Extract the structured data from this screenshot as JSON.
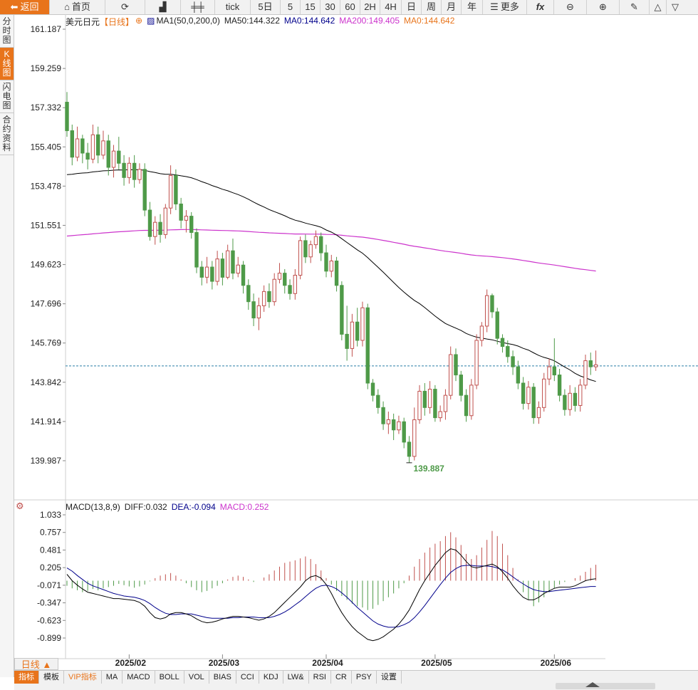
{
  "toolbar": {
    "back": "返回",
    "home": "首页",
    "tick": "tick",
    "periods": [
      "5日",
      "5",
      "15",
      "30",
      "60",
      "2H",
      "4H",
      "日",
      "周",
      "月",
      "年"
    ],
    "more": "更多"
  },
  "left_tabs": [
    {
      "label": "分时图",
      "active": false
    },
    {
      "label": "K线图",
      "active": true
    },
    {
      "label": "闪电图",
      "active": false
    },
    {
      "label": "合约资料",
      "active": false
    }
  ],
  "legend": {
    "symbol": "美元日元",
    "period": "【日线】",
    "ma1": "MA1(50,0,200,0)",
    "ma50": "MA50:144.322",
    "ma0a": "MA0:144.642",
    "ma200": "MA200:149.405",
    "ma0b": "MA0:144.642"
  },
  "macd_legend": {
    "name": "MACD(13,8,9)",
    "diff": "DIFF:0.032",
    "dea": "DEA:-0.094",
    "macd": "MACD:0.252"
  },
  "price_axis": [
    "161.187",
    "159.259",
    "157.332",
    "155.405",
    "153.478",
    "151.551",
    "149.623",
    "147.696",
    "145.769",
    "143.842",
    "141.914",
    "139.987"
  ],
  "macd_axis": [
    "1.033",
    "0.757",
    "0.481",
    "0.205",
    "-0.071",
    "-0.347",
    "-0.623",
    "-0.899"
  ],
  "low_label": "139.887",
  "x_labels": [
    "2025/02",
    "2025/03",
    "2025/04",
    "2025/05",
    "2025/06"
  ],
  "bottom": {
    "period_button": "日线 ▲",
    "indicator_tabs": [
      "指标",
      "模板",
      "VIP指标",
      "MA",
      "MACD",
      "BOLL",
      "VOL",
      "BIAS",
      "CCI",
      "KDJ",
      "LW&",
      "RSI",
      "CR",
      "PSY",
      "设置"
    ]
  },
  "colors": {
    "up": "#c0504d",
    "down": "#4e9a48",
    "ma50": "#000000",
    "ma200": "#cc33cc",
    "accent": "#e8741b",
    "dea": "#00008b"
  },
  "chart_data": {
    "type": "candlestick",
    "current_price": 144.642,
    "low": 139.887,
    "ylim": [
      139.987,
      161.187
    ],
    "macd_ylim": [
      -0.899,
      1.033
    ],
    "candles": [
      [
        157.6,
        156.2,
        158.1,
        155.9
      ],
      [
        156.2,
        154.9,
        156.5,
        154.5
      ],
      [
        154.9,
        155.8,
        156.4,
        154.7
      ],
      [
        155.8,
        155.1,
        156.0,
        154.6
      ],
      [
        155.1,
        154.8,
        155.6,
        154.3
      ],
      [
        154.8,
        156.0,
        156.5,
        154.6
      ],
      [
        156.0,
        155.0,
        156.4,
        154.6
      ],
      [
        155.0,
        155.7,
        156.2,
        154.8
      ],
      [
        155.7,
        154.4,
        156.0,
        154.0
      ],
      [
        154.4,
        155.2,
        155.5,
        153.9
      ],
      [
        155.2,
        154.6,
        155.9,
        154.3
      ],
      [
        154.6,
        153.9,
        155.0,
        153.5
      ],
      [
        153.9,
        154.6,
        154.9,
        153.6
      ],
      [
        154.6,
        153.8,
        155.0,
        153.4
      ],
      [
        153.8,
        154.3,
        154.6,
        153.6
      ],
      [
        154.3,
        152.3,
        154.6,
        152.0
      ],
      [
        152.3,
        151.0,
        152.7,
        150.8
      ],
      [
        151.0,
        151.7,
        152.0,
        150.6
      ],
      [
        151.7,
        151.1,
        152.1,
        150.7
      ],
      [
        151.1,
        152.4,
        152.6,
        150.9
      ],
      [
        152.4,
        154.0,
        154.5,
        152.1
      ],
      [
        154.0,
        152.6,
        154.3,
        152.3
      ],
      [
        152.6,
        151.8,
        152.9,
        151.4
      ],
      [
        151.8,
        152.0,
        152.3,
        151.2
      ],
      [
        152.0,
        151.2,
        152.2,
        150.9
      ],
      [
        151.2,
        149.5,
        151.4,
        149.2
      ],
      [
        149.5,
        149.0,
        149.8,
        148.6
      ],
      [
        149.0,
        149.5,
        150.0,
        148.7
      ],
      [
        149.5,
        148.8,
        149.8,
        148.4
      ],
      [
        148.8,
        149.9,
        150.3,
        148.6
      ],
      [
        149.9,
        149.0,
        150.2,
        148.6
      ],
      [
        149.0,
        150.3,
        150.6,
        148.9
      ],
      [
        150.3,
        149.2,
        150.9,
        148.9
      ],
      [
        149.2,
        149.6,
        150.0,
        149.0
      ],
      [
        149.6,
        148.6,
        149.8,
        148.2
      ],
      [
        148.6,
        147.8,
        148.9,
        147.4
      ],
      [
        147.8,
        147.0,
        148.2,
        146.6
      ],
      [
        147.0,
        147.6,
        148.0,
        146.4
      ],
      [
        147.6,
        148.3,
        148.6,
        147.3
      ],
      [
        148.3,
        147.8,
        148.7,
        147.5
      ],
      [
        147.8,
        148.9,
        149.2,
        147.6
      ],
      [
        148.9,
        149.2,
        149.7,
        148.7
      ],
      [
        149.2,
        148.6,
        149.4,
        148.2
      ],
      [
        148.6,
        148.2,
        148.9,
        147.9
      ],
      [
        148.2,
        149.1,
        149.4,
        147.9
      ],
      [
        149.1,
        150.8,
        151.0,
        148.9
      ],
      [
        150.8,
        150.0,
        151.1,
        149.7
      ],
      [
        150.0,
        150.6,
        150.8,
        149.7
      ],
      [
        150.6,
        151.0,
        151.3,
        150.4
      ],
      [
        151.0,
        150.2,
        151.2,
        149.8
      ],
      [
        150.2,
        149.3,
        150.6,
        149.0
      ],
      [
        149.3,
        149.8,
        150.1,
        149.0
      ],
      [
        149.8,
        148.6,
        150.0,
        148.3
      ],
      [
        148.6,
        146.2,
        148.8,
        145.9
      ],
      [
        146.2,
        145.5,
        147.6,
        144.9
      ],
      [
        145.5,
        146.8,
        147.2,
        145.1
      ],
      [
        146.8,
        145.9,
        147.5,
        145.6
      ],
      [
        145.9,
        147.5,
        147.8,
        145.6
      ],
      [
        147.5,
        143.8,
        147.7,
        143.5
      ],
      [
        143.8,
        143.2,
        144.0,
        142.9
      ],
      [
        143.2,
        142.6,
        143.5,
        142.3
      ],
      [
        142.6,
        141.8,
        142.9,
        141.5
      ],
      [
        141.8,
        142.0,
        142.4,
        141.3
      ],
      [
        142.0,
        141.5,
        142.3,
        141.0
      ],
      [
        141.5,
        141.9,
        142.2,
        141.3
      ],
      [
        141.9,
        140.9,
        142.1,
        140.6
      ],
      [
        140.9,
        140.2,
        141.2,
        139.9
      ],
      [
        140.2,
        142.0,
        142.6,
        140.0
      ],
      [
        142.0,
        143.4,
        143.7,
        141.8
      ],
      [
        143.4,
        142.6,
        143.8,
        142.2
      ],
      [
        142.6,
        143.5,
        143.9,
        142.3
      ],
      [
        143.5,
        142.1,
        143.7,
        141.9
      ],
      [
        142.1,
        142.4,
        142.7,
        141.9
      ],
      [
        142.4,
        143.2,
        143.5,
        142.0
      ],
      [
        143.2,
        145.2,
        145.6,
        143.0
      ],
      [
        145.2,
        144.2,
        145.5,
        143.9
      ],
      [
        144.2,
        143.2,
        144.4,
        142.9
      ],
      [
        143.2,
        142.2,
        143.5,
        141.9
      ],
      [
        142.2,
        143.7,
        144.0,
        142.0
      ],
      [
        143.7,
        145.9,
        146.2,
        143.5
      ],
      [
        145.9,
        146.6,
        146.8,
        145.6
      ],
      [
        146.6,
        148.1,
        148.4,
        146.3
      ],
      [
        148.1,
        147.3,
        148.2,
        147.0
      ],
      [
        147.3,
        146.0,
        147.5,
        145.7
      ],
      [
        146.0,
        145.6,
        146.2,
        145.3
      ],
      [
        145.6,
        145.1,
        145.9,
        144.8
      ],
      [
        145.1,
        144.6,
        145.4,
        144.2
      ],
      [
        144.6,
        143.8,
        144.9,
        143.5
      ],
      [
        143.8,
        142.8,
        144.1,
        142.5
      ],
      [
        142.8,
        143.6,
        143.9,
        142.5
      ],
      [
        143.6,
        142.1,
        143.8,
        141.8
      ],
      [
        142.1,
        142.6,
        142.9,
        141.8
      ],
      [
        142.6,
        144.0,
        144.3,
        142.4
      ],
      [
        144.0,
        144.6,
        145.0,
        143.7
      ],
      [
        144.6,
        144.2,
        146.0,
        143.9
      ],
      [
        144.2,
        143.2,
        144.5,
        142.9
      ],
      [
        143.2,
        142.5,
        143.5,
        142.2
      ],
      [
        142.5,
        143.3,
        143.7,
        142.2
      ],
      [
        143.3,
        142.7,
        143.6,
        142.4
      ],
      [
        142.7,
        143.7,
        144.0,
        142.4
      ],
      [
        143.7,
        144.9,
        145.2,
        143.5
      ],
      [
        144.9,
        144.6,
        145.3,
        144.2
      ],
      [
        144.6,
        144.7,
        145.4,
        144.4
      ]
    ],
    "macd_bars": [
      -0.08,
      -0.12,
      -0.15,
      -0.18,
      -0.16,
      -0.13,
      -0.15,
      -0.12,
      -0.1,
      -0.08,
      -0.05,
      -0.07,
      -0.09,
      -0.11,
      -0.09,
      -0.06,
      -0.01,
      0.04,
      0.08,
      0.1,
      0.12,
      0.08,
      0.02,
      -0.04,
      -0.1,
      -0.15,
      -0.18,
      -0.16,
      -0.12,
      -0.08,
      -0.04,
      0.02,
      0.06,
      0.08,
      0.06,
      0.02,
      -0.02,
      0.0,
      0.05,
      0.1,
      0.16,
      0.22,
      0.28,
      0.3,
      0.32,
      0.35,
      0.38,
      0.34,
      0.26,
      0.16,
      0.04,
      -0.06,
      -0.16,
      -0.24,
      -0.3,
      -0.36,
      -0.4,
      -0.42,
      -0.46,
      -0.44,
      -0.38,
      -0.32,
      -0.26,
      -0.2,
      -0.12,
      -0.04,
      0.08,
      0.22,
      0.34,
      0.44,
      0.52,
      0.58,
      0.62,
      0.7,
      0.76,
      0.68,
      0.56,
      0.42,
      0.34,
      0.4,
      0.52,
      0.64,
      0.78,
      0.7,
      0.58,
      0.4,
      0.2,
      0.02,
      -0.18,
      -0.3,
      -0.4,
      -0.34,
      -0.26,
      -0.18,
      -0.12,
      -0.06,
      -0.02,
      0.0,
      0.04,
      0.08,
      0.14,
      0.2,
      0.25
    ],
    "diff": [
      0.1,
      0.0,
      -0.07,
      -0.13,
      -0.18,
      -0.2,
      -0.22,
      -0.24,
      -0.26,
      -0.28,
      -0.28,
      -0.29,
      -0.3,
      -0.31,
      -0.34,
      -0.4,
      -0.5,
      -0.58,
      -0.6,
      -0.58,
      -0.52,
      -0.5,
      -0.5,
      -0.52,
      -0.55,
      -0.6,
      -0.64,
      -0.66,
      -0.65,
      -0.63,
      -0.6,
      -0.58,
      -0.56,
      -0.56,
      -0.57,
      -0.58,
      -0.6,
      -0.62,
      -0.6,
      -0.56,
      -0.5,
      -0.42,
      -0.34,
      -0.26,
      -0.18,
      -0.1,
      0.0,
      0.06,
      0.08,
      0.04,
      -0.06,
      -0.2,
      -0.36,
      -0.5,
      -0.62,
      -0.72,
      -0.8,
      -0.86,
      -0.92,
      -0.94,
      -0.92,
      -0.88,
      -0.82,
      -0.76,
      -0.68,
      -0.58,
      -0.46,
      -0.3,
      -0.14,
      0.0,
      0.12,
      0.24,
      0.34,
      0.44,
      0.5,
      0.48,
      0.4,
      0.3,
      0.22,
      0.2,
      0.22,
      0.24,
      0.26,
      0.22,
      0.14,
      0.04,
      -0.08,
      -0.18,
      -0.26,
      -0.3,
      -0.3,
      -0.26,
      -0.2,
      -0.16,
      -0.12,
      -0.1,
      -0.1,
      -0.1,
      -0.08,
      -0.04,
      0.0,
      0.02,
      0.03
    ],
    "dea": [
      0.2,
      0.15,
      0.08,
      0.02,
      -0.04,
      -0.08,
      -0.11,
      -0.14,
      -0.17,
      -0.2,
      -0.22,
      -0.24,
      -0.25,
      -0.26,
      -0.28,
      -0.31,
      -0.36,
      -0.42,
      -0.47,
      -0.51,
      -0.53,
      -0.53,
      -0.52,
      -0.52,
      -0.52,
      -0.54,
      -0.56,
      -0.58,
      -0.59,
      -0.59,
      -0.59,
      -0.59,
      -0.58,
      -0.58,
      -0.57,
      -0.57,
      -0.57,
      -0.58,
      -0.58,
      -0.58,
      -0.56,
      -0.53,
      -0.49,
      -0.44,
      -0.38,
      -0.32,
      -0.25,
      -0.18,
      -0.12,
      -0.08,
      -0.07,
      -0.09,
      -0.13,
      -0.19,
      -0.26,
      -0.34,
      -0.42,
      -0.49,
      -0.56,
      -0.63,
      -0.68,
      -0.71,
      -0.73,
      -0.73,
      -0.72,
      -0.69,
      -0.65,
      -0.58,
      -0.49,
      -0.39,
      -0.28,
      -0.17,
      -0.06,
      0.04,
      0.13,
      0.19,
      0.23,
      0.24,
      0.24,
      0.23,
      0.23,
      0.23,
      0.22,
      0.2,
      0.17,
      0.12,
      0.06,
      0.0,
      -0.05,
      -0.1,
      -0.14,
      -0.16,
      -0.17,
      -0.17,
      -0.16,
      -0.15,
      -0.14,
      -0.13,
      -0.12,
      -0.11,
      -0.1,
      -0.09,
      -0.09
    ],
    "x_label_indices": [
      12,
      30,
      50,
      71,
      94
    ]
  }
}
